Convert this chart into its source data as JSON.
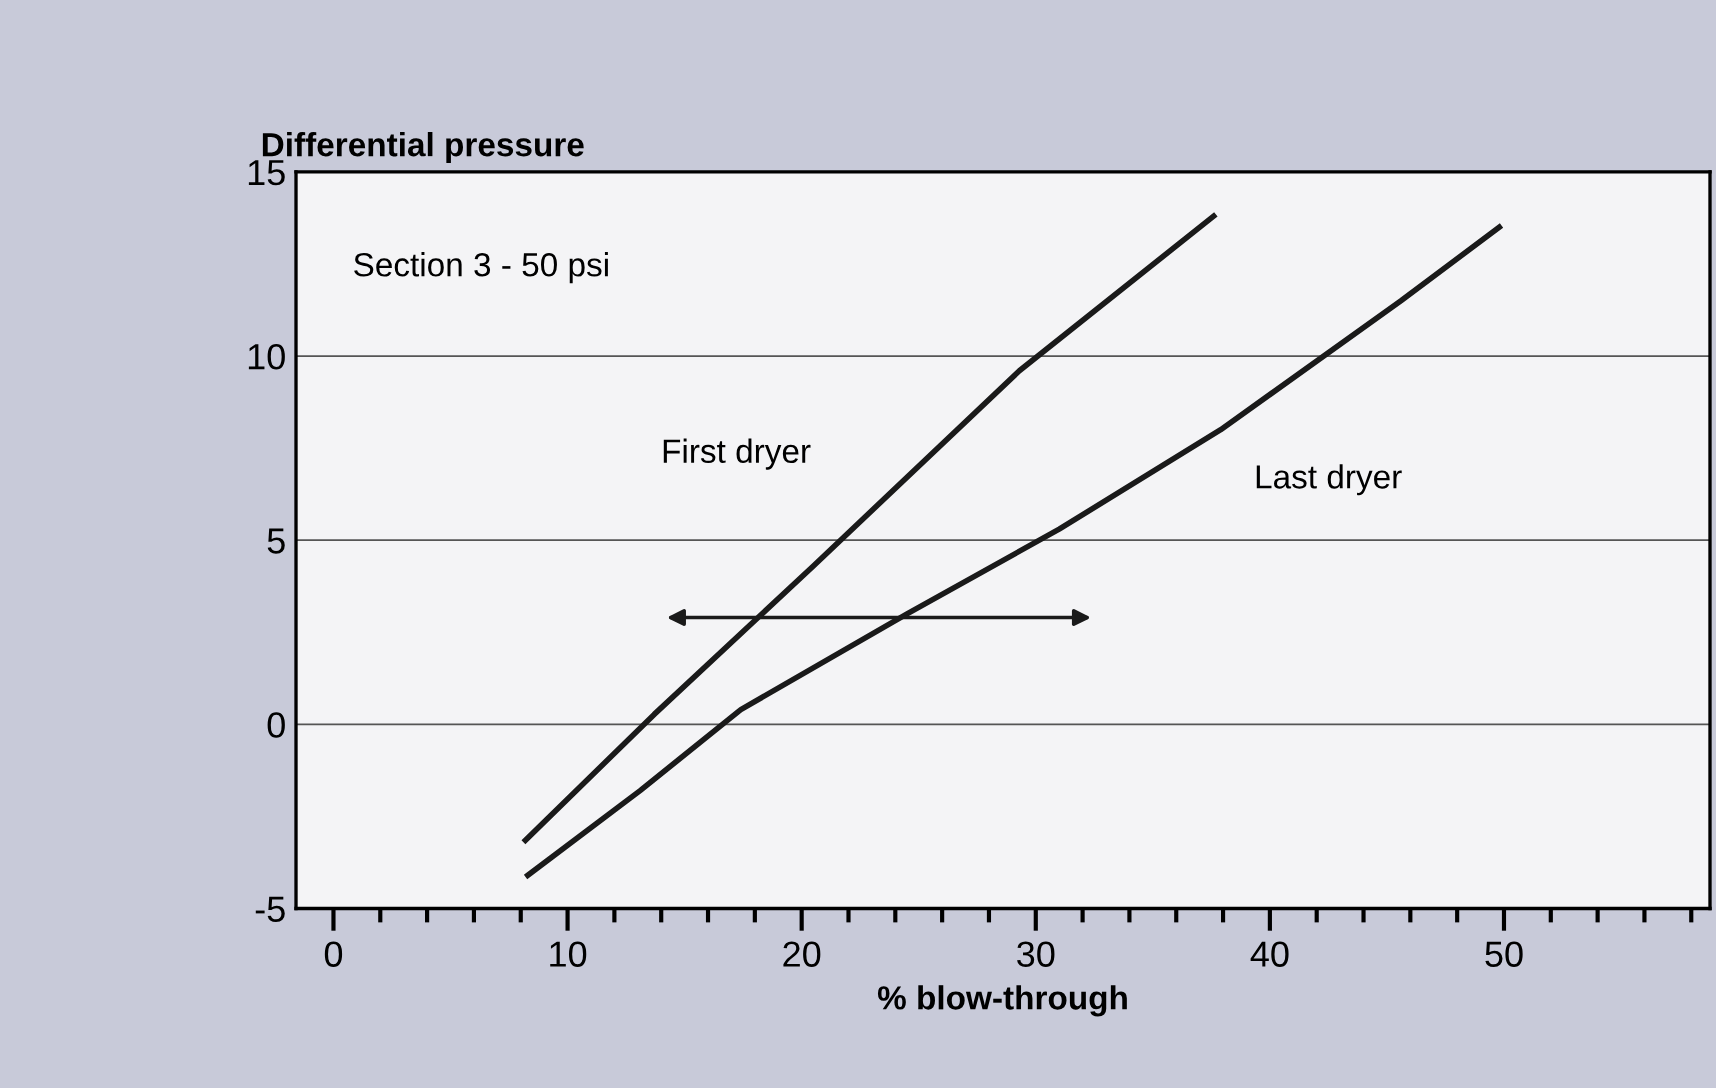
{
  "chart_data": {
    "type": "line",
    "ylabel": "Differential pressure",
    "xlabel": "% blow-through",
    "xlim": [
      -1.6,
      58.8
    ],
    "xticks": [
      0,
      10,
      20,
      30,
      40,
      50
    ],
    "ylim": [
      -5,
      15
    ],
    "yticks": [
      -5,
      0,
      5,
      10,
      15
    ],
    "grid": "y",
    "marker": "none",
    "line_style": "solid",
    "series": [
      {
        "name": "First dryer",
        "color": "#1a1a1a",
        "x": [
          8.2,
          13.7,
          20.5,
          29.3,
          37.6
        ],
        "values": [
          -3.15,
          0.27,
          4.3,
          9.6,
          13.8
        ]
      },
      {
        "name": "Last dryer",
        "color": "#1a1a1a",
        "x": [
          8.3,
          13.1,
          17.4,
          24.5,
          31.0,
          37.9,
          45.6,
          49.8
        ],
        "values": [
          -4.1,
          -1.8,
          0.4,
          3.0,
          5.3,
          8.0,
          11.5,
          13.5
        ]
      }
    ],
    "annotations": [
      "Section 3 - 50 psi"
    ]
  }
}
